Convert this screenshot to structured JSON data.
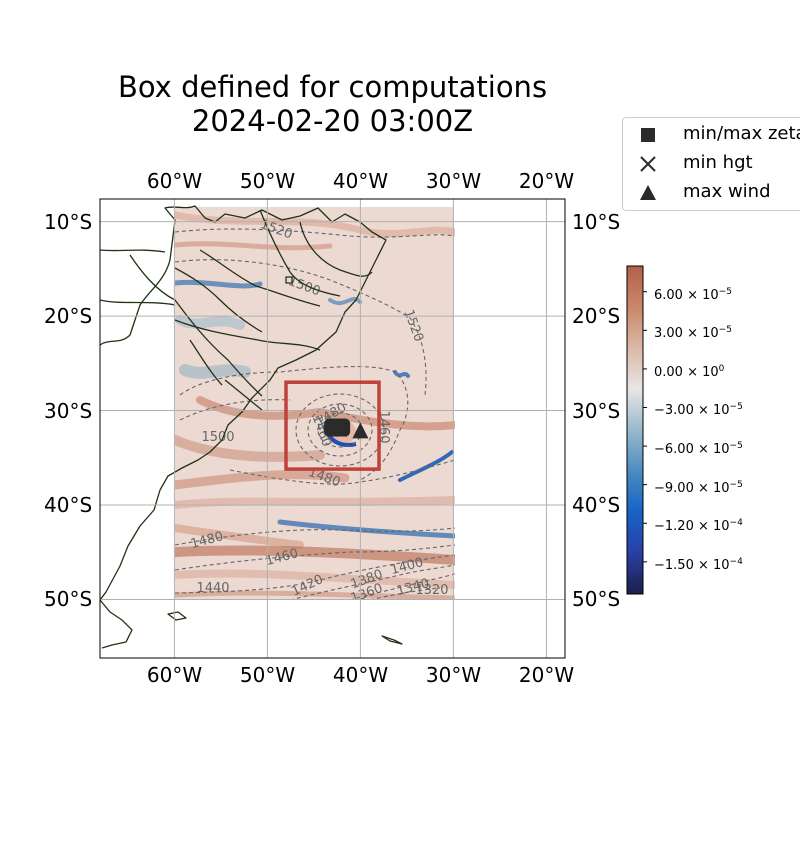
{
  "title": {
    "line1": "Box defined for computations",
    "line2": "2024-02-20 03:00Z"
  },
  "axes": {
    "x_ticks": [
      "60°W",
      "50°W",
      "40°W",
      "30°W",
      "20°W"
    ],
    "y_ticks": [
      "10°S",
      "20°S",
      "30°S",
      "40°S",
      "50°S"
    ],
    "lon_range": [
      -68,
      -18
    ],
    "lat_range": [
      -56.2,
      -7.6
    ],
    "grid": true
  },
  "data_domain": {
    "lon": [
      -60,
      -30
    ],
    "lat": [
      -50,
      -8
    ]
  },
  "computation_box": {
    "lon": [
      -48,
      -38
    ],
    "lat": [
      -36.2,
      -27
    ],
    "color": "#c0403b"
  },
  "contours": {
    "labels": [
      "1520",
      "1500",
      "1520",
      "1500",
      "1480",
      "1480",
      "1460",
      "1440",
      "1420",
      "1400",
      "1380",
      "1360",
      "1340",
      "1320",
      "1460",
      "1480",
      "1460"
    ]
  },
  "markers": {
    "min_max_zeta": {
      "lon": -42.5,
      "lat": -31.8
    },
    "min_hgt": {
      "lon": -42.0,
      "lat": -32.2
    },
    "max_wind": {
      "lon": -40.0,
      "lat": -32.2
    }
  },
  "legend": {
    "items": [
      {
        "label": "min/max zeta",
        "icon": "square-marker-icon"
      },
      {
        "label": "min hgt",
        "icon": "x-marker-icon"
      },
      {
        "label": "max wind",
        "icon": "triangle-marker-icon"
      }
    ]
  },
  "colorbar": {
    "min": -0.000175,
    "max": 8e-05,
    "ticks": [
      {
        "mant": "6.00",
        "exp": "−5",
        "value": 6e-05
      },
      {
        "mant": "3.00",
        "exp": "−5",
        "value": 3e-05
      },
      {
        "mant": "0.00",
        "exp": "0",
        "value": 0
      },
      {
        "mant": "−3.00",
        "exp": "−5",
        "value": -3e-05
      },
      {
        "mant": "−6.00",
        "exp": "−5",
        "value": -6e-05
      },
      {
        "mant": "−9.00",
        "exp": "−5",
        "value": -9e-05
      },
      {
        "mant": "−1.20",
        "exp": "−4",
        "value": -0.00012
      },
      {
        "mant": "−1.50",
        "exp": "−4",
        "value": -0.00015
      }
    ],
    "colors": [
      "#1b1f4a",
      "#2a3fa3",
      "#1763c8",
      "#4b8cc0",
      "#9ab9cc",
      "#e6e6e6",
      "#dcb8a6",
      "#c9876b",
      "#b5604a"
    ]
  },
  "colors": {
    "coast": "#1f3315",
    "contour": "#666666",
    "grid": "#b0b0b0",
    "marker": "#2b2b2b"
  }
}
